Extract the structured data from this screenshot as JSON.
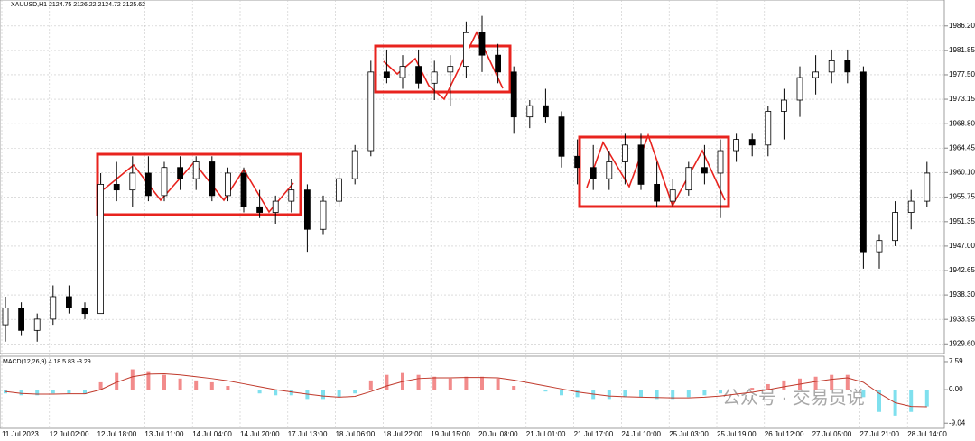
{
  "chart_data": [
    {
      "type": "candlestick",
      "title": "XAUUSD,H1  2124.75 2126.22 2124.72 2125.62",
      "categories": [
        "11 Jul 2023",
        null,
        null,
        "12 Jul 02:00",
        null,
        null,
        "12 Jul 18:00",
        null,
        null,
        "13 Jul 11:00",
        null,
        null,
        "14 Jul 04:00",
        null,
        null,
        "14 Jul 20:00",
        null,
        null,
        "17 Jul 13:00",
        null,
        null,
        "18 Jul 06:00",
        null,
        null,
        "18 Jul 22:00",
        null,
        null,
        "19 Jul 15:00",
        null,
        null,
        "20 Jul 08:00",
        null,
        null,
        "21 Jul 01:00",
        null,
        null,
        "21 Jul 17:00",
        null,
        null,
        "24 Jul 10:00",
        null,
        null,
        "25 Jul 03:00",
        null,
        null,
        "25 Jul 19:00",
        null,
        null,
        "26 Jul 12:00",
        null,
        null,
        "27 Jul 05:00",
        null,
        null,
        "27 Jul 21:00",
        null,
        null,
        "28 Jul 14:00",
        null
      ],
      "open": [
        1933,
        1936,
        1932,
        1934,
        1938,
        1936,
        1935,
        1958,
        1957,
        1960,
        1956,
        1961,
        1959,
        1962,
        1956,
        1960,
        1954,
        1953,
        1955,
        1957,
        1950,
        1955,
        1959,
        1964,
        1978,
        1977,
        1979,
        1976,
        1978,
        1979,
        1985,
        1981,
        1978,
        1970,
        1972,
        1970,
        1963,
        1961,
        1959,
        1962,
        1965,
        1958,
        1955,
        1957,
        1961,
        1960,
        1964,
        1966,
        1965,
        1971,
        1973,
        1977,
        1978,
        1980,
        1978,
        1946,
        1948,
        1953,
        1955
      ],
      "high": [
        1938,
        1937,
        1935,
        1940,
        1940,
        1937,
        1960,
        1962,
        1963,
        1963,
        1962,
        1963,
        1963,
        1963,
        1961,
        1961,
        1957,
        1956,
        1959,
        1958,
        1956,
        1960,
        1965,
        1980,
        1982,
        1981,
        1982,
        1980,
        1981,
        1987,
        1988,
        1983,
        1979,
        1973,
        1975,
        1971,
        1966,
        1965,
        1964,
        1967,
        1967,
        1962,
        1959,
        1962,
        1965,
        1966,
        1967,
        1967,
        1972,
        1975,
        1979,
        1981,
        1982,
        1982,
        1979,
        1949,
        1955,
        1957,
        1962
      ],
      "low": [
        1930,
        1931,
        1930,
        1933,
        1935,
        1934,
        1935,
        1955,
        1954,
        1955,
        1955,
        1957,
        1957,
        1955,
        1955,
        1953,
        1952,
        1951,
        1953,
        1946,
        1949,
        1954,
        1958,
        1963,
        1976,
        1975,
        1975,
        1973,
        1972,
        1977,
        1978,
        1976,
        1967,
        1968,
        1969,
        1961,
        1958,
        1957,
        1957,
        1958,
        1957,
        1954,
        1954,
        1956,
        1958,
        1952,
        1962,
        1963,
        1963,
        1966,
        1970,
        1974,
        1976,
        1976,
        1943,
        1943,
        1947,
        1950,
        1954
      ],
      "close": [
        1936,
        1932,
        1934,
        1938,
        1936,
        1935,
        1958,
        1957,
        1960,
        1956,
        1961,
        1959,
        1962,
        1956,
        1960,
        1954,
        1953,
        1955,
        1957,
        1950,
        1955,
        1959,
        1964,
        1978,
        1977,
        1979,
        1976,
        1978,
        1979,
        1985,
        1981,
        1978,
        1970,
        1972,
        1970,
        1963,
        1961,
        1959,
        1962,
        1965,
        1958,
        1955,
        1957,
        1961,
        1960,
        1964,
        1966,
        1965,
        1971,
        1973,
        1977,
        1978,
        1980,
        1978,
        1946,
        1948,
        1953,
        1955,
        1960
      ],
      "bull_color": "#ffffff",
      "bear_color": "#000000",
      "ylim": [
        1928.2,
        1990.5
      ],
      "yticks": [
        {
          "value": 1986.2,
          "label": "1986.20"
        },
        {
          "value": 1981.85,
          "label": "1981.85"
        },
        {
          "value": 1977.5,
          "label": "1977.50"
        },
        {
          "value": 1973.15,
          "label": "1973.15"
        },
        {
          "value": 1968.8,
          "label": "1968.80"
        },
        {
          "value": 1964.45,
          "label": "1964.45"
        },
        {
          "value": 1960.1,
          "label": "1960.10"
        },
        {
          "value": 1955.75,
          "label": "1955.75"
        },
        {
          "value": 1951.35,
          "label": "1951.35"
        },
        {
          "value": 1947,
          "label": "1947.00"
        },
        {
          "value": 1942.65,
          "label": "1942.65"
        },
        {
          "value": 1938.3,
          "label": "1938.30"
        },
        {
          "value": 1933.95,
          "label": "1933.95"
        },
        {
          "value": 1929.6,
          "label": "1929.60"
        }
      ],
      "grid": true
    },
    {
      "type": "macd",
      "title": "MACD(12,26,9) 4.18 5.83 -3.29",
      "series": [
        {
          "kind": "histogram",
          "up_color": "#f28b8b",
          "down_color": "#7fe0ee",
          "values": [
            -1,
            -1.5,
            -1.5,
            -1,
            -1,
            -1.2,
            2,
            4.5,
            5.5,
            5,
            4,
            3,
            2.5,
            2,
            1,
            0,
            -1,
            -1.5,
            -1.5,
            -2.5,
            -2.5,
            -2,
            -1,
            2.5,
            4,
            4.5,
            4,
            3.5,
            3,
            3.5,
            3.5,
            3,
            1,
            0,
            -0.5,
            -1.5,
            -2,
            -2.5,
            -2.5,
            -2,
            -2,
            -2.5,
            -2.5,
            -2,
            -1.5,
            -1,
            0,
            0.5,
            1.5,
            2.5,
            3,
            3.5,
            4,
            4,
            -2,
            -6,
            -7,
            -6,
            -4.5
          ]
        },
        {
          "kind": "line",
          "color": "#c0392b",
          "values": [
            -0.5,
            -1,
            -1.2,
            -1.2,
            -1.1,
            -1.1,
            0,
            2,
            3.5,
            4.2,
            4.3,
            4,
            3.5,
            3,
            2.4,
            1.6,
            0.8,
            0,
            -0.6,
            -1.2,
            -1.7,
            -2,
            -1.8,
            -0.5,
            1,
            2.2,
            3,
            3.2,
            3.2,
            3.3,
            3.3,
            3.2,
            2.6,
            1.8,
            1,
            0.2,
            -0.6,
            -1.2,
            -1.7,
            -1.9,
            -2,
            -2.1,
            -2.2,
            -2.2,
            -2,
            -1.7,
            -1.2,
            -0.7,
            0,
            0.8,
            1.5,
            2.2,
            2.8,
            3.2,
            2,
            -1,
            -3.5,
            -4.5,
            -4.6
          ]
        }
      ],
      "ylim": [
        -10.2,
        8.8
      ],
      "yticks": [
        7.59,
        {
          "value": 0,
          "label": "0.00"
        },
        -9.04
      ]
    }
  ],
  "watermark": "公众号 · 交易员说"
}
